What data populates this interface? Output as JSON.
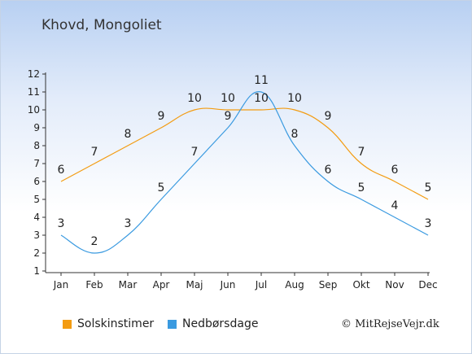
{
  "title": "Khovd, Mongoliet",
  "copyright": "© MitRejseVejr.dk",
  "colors": {
    "sun": "#f39c12",
    "rain": "#3a9ae0",
    "axis": "#333333"
  },
  "chart_data": {
    "type": "line",
    "title": "Khovd, Mongoliet",
    "categories": [
      "Jan",
      "Feb",
      "Mar",
      "Apr",
      "Maj",
      "Jun",
      "Jul",
      "Aug",
      "Sep",
      "Okt",
      "Nov",
      "Dec"
    ],
    "ylim": [
      1,
      12
    ],
    "yticks": [
      1,
      2,
      3,
      4,
      5,
      6,
      7,
      8,
      9,
      10,
      11,
      12
    ],
    "grid": false,
    "legend_position": "bottom",
    "series": [
      {
        "name": "Solskinstimer",
        "color": "#f39c12",
        "values": [
          6,
          7,
          8,
          9,
          10,
          10,
          10,
          10,
          9,
          7,
          6,
          5
        ]
      },
      {
        "name": "Nedbørsdage",
        "color": "#3a9ae0",
        "values": [
          3,
          2,
          3,
          5,
          7,
          9,
          11,
          8,
          6,
          5,
          4,
          3
        ]
      }
    ]
  }
}
